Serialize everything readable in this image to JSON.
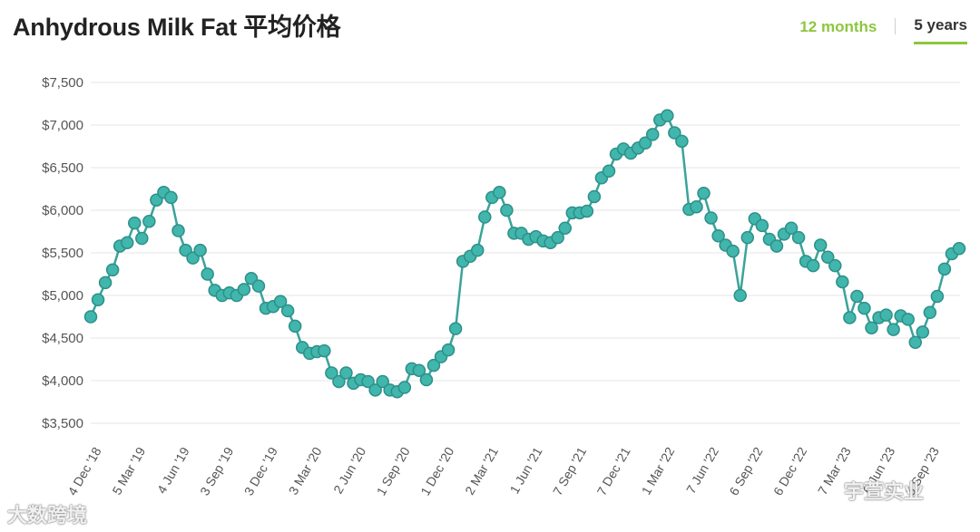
{
  "header": {
    "title": "Anhydrous Milk Fat 平均价格",
    "tabs": [
      {
        "label": "12 months",
        "selected": false
      },
      {
        "label": "5 years",
        "selected": true
      }
    ]
  },
  "watermarks": {
    "left": "大数跨境",
    "right": "宇萱实业"
  },
  "colors": {
    "line": "#3aa39a",
    "marker_fill": "#40b6ad",
    "marker_stroke": "#2e8f88",
    "grid": "#e6e6e6",
    "accent": "#8dc63f"
  },
  "chart_data": {
    "type": "line",
    "title": "Anhydrous Milk Fat 平均价格",
    "xlabel": "",
    "ylabel": "",
    "ylim": [
      3500,
      7500
    ],
    "yticks": [
      3500,
      4000,
      4500,
      5000,
      5500,
      6000,
      6500,
      7000,
      7500
    ],
    "ytick_labels": [
      "$3,500",
      "$4,000",
      "$4,500",
      "$5,000",
      "$5,500",
      "$6,000",
      "$6,500",
      "$7,000",
      "$7,500"
    ],
    "xtick_labels": [
      "4 Dec '18",
      "5 Mar '19",
      "4 Jun '19",
      "3 Sep '19",
      "3 Dec '19",
      "3 Mar '20",
      "2 Jun '20",
      "1 Sep '20",
      "1 Dec '20",
      "2 Mar '21",
      "1 Jun '21",
      "7 Sep '21",
      "7 Dec '21",
      "1 Mar '22",
      "7 Jun '22",
      "6 Sep '22",
      "6 Dec '22",
      "7 Mar '23",
      "6 Jun '23",
      "5 Sep '23"
    ],
    "grid": true,
    "legend": "none",
    "series": [
      {
        "values": [
          4750,
          4950,
          5150,
          5300,
          5580,
          5620,
          5850,
          5670,
          5870,
          6120,
          6210,
          6150,
          5760,
          5530,
          5440,
          5530,
          5250,
          5060,
          5000,
          5030,
          5000,
          5070,
          5200,
          5110,
          4850,
          4870,
          4930,
          4820,
          4640,
          4390,
          4320,
          4340,
          4350,
          4090,
          3990,
          4090,
          3970,
          4010,
          3990,
          3890,
          3990,
          3890,
          3870,
          3920,
          4140,
          4120,
          4010,
          4180,
          4280,
          4360,
          4610,
          5400,
          5460,
          5530,
          5920,
          6150,
          6210,
          6000,
          5730,
          5730,
          5660,
          5690,
          5640,
          5620,
          5680,
          5790,
          5970,
          5970,
          5990,
          6160,
          6380,
          6460,
          6660,
          6720,
          6670,
          6730,
          6790,
          6890,
          7060,
          7110,
          6910,
          6810,
          6010,
          6040,
          6200,
          5910,
          5700,
          5590,
          5520,
          5000,
          5680,
          5900,
          5820,
          5660,
          5580,
          5720,
          5790,
          5680,
          5400,
          5350,
          5590,
          5450,
          5350,
          5160,
          4740,
          4990,
          4850,
          4620,
          4740,
          4770,
          4600,
          4760,
          4720,
          4450,
          4570,
          4800,
          4990,
          5310,
          5490,
          5550
        ]
      }
    ]
  }
}
